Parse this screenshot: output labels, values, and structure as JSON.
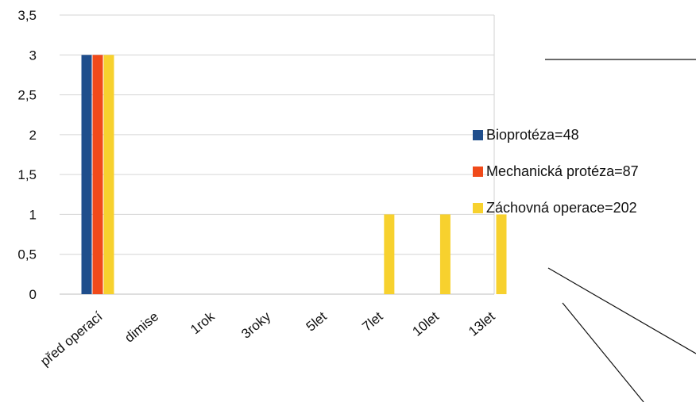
{
  "chart_data": {
    "type": "bar",
    "title": "",
    "xlabel": "",
    "ylabel": "",
    "categories": [
      "před operací",
      "dimise",
      "1rok",
      "3roky",
      "5let",
      "7let",
      "10let",
      "13let"
    ],
    "series": [
      {
        "name": "Bioprotéza=48",
        "color": "#1f4e8c",
        "values": [
          3,
          0,
          0,
          0,
          0,
          0,
          0,
          0
        ]
      },
      {
        "name": "Mechanická protéza=87",
        "color": "#f04a1a",
        "values": [
          3,
          0,
          0,
          0,
          0,
          0,
          0,
          0
        ]
      },
      {
        "name": "Záchovná operace=202",
        "color": "#f7d12e",
        "values": [
          3,
          0,
          0,
          0,
          0,
          1,
          1,
          1
        ]
      }
    ],
    "ylim": [
      0,
      3.5
    ],
    "yticks": [
      "0",
      "0,5",
      "1",
      "1,5",
      "2",
      "2,5",
      "3",
      "3,5"
    ],
    "grid": true,
    "legend_position": "right"
  }
}
